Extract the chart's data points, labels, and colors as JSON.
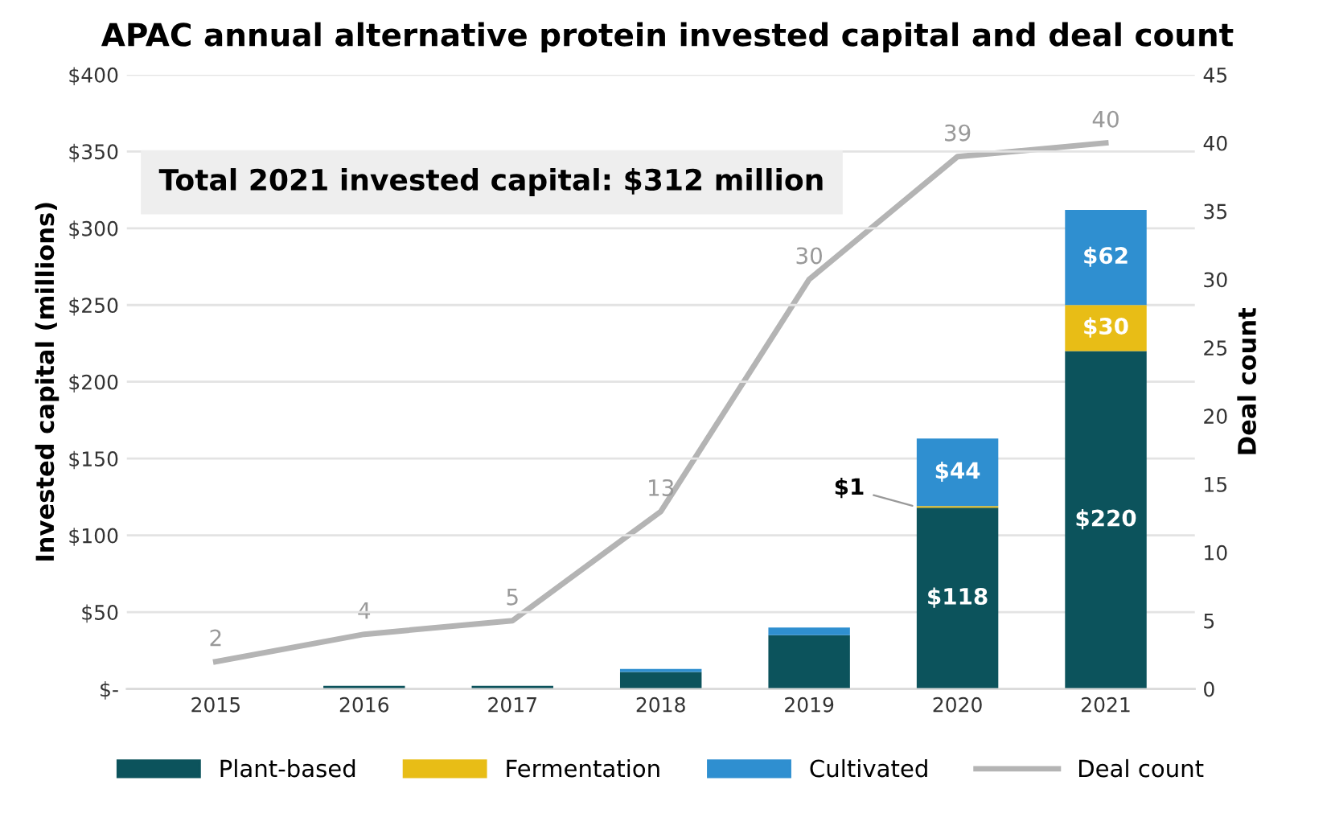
{
  "chart_data": {
    "type": "bar",
    "title": "APAC annual alternative protein invested capital and deal count",
    "ylabel": "Invested capital (millions)",
    "y2label": "Deal count",
    "categories": [
      "2015",
      "2016",
      "2017",
      "2018",
      "2019",
      "2020",
      "2021"
    ],
    "stacked": true,
    "series": [
      {
        "name": "Plant-based",
        "color": "#0c535c",
        "values": [
          0,
          2,
          2,
          11,
          35,
          118,
          220
        ],
        "value_labels": [
          null,
          null,
          null,
          null,
          null,
          "$118",
          "$220"
        ]
      },
      {
        "name": "Fermentation",
        "color": "#e8bd16",
        "values": [
          0,
          0,
          0,
          0,
          0,
          1,
          30
        ],
        "value_labels": [
          null,
          null,
          null,
          null,
          null,
          "$1",
          "$30"
        ]
      },
      {
        "name": "Cultivated",
        "color": "#2f8fd0",
        "values": [
          0,
          0,
          0,
          2,
          5,
          44,
          62
        ],
        "value_labels": [
          null,
          null,
          null,
          null,
          null,
          "$44",
          "$62"
        ]
      },
      {
        "name": "Deal count",
        "type": "line",
        "axis": "y2",
        "color": "#b4b4b4",
        "values": [
          2,
          4,
          5,
          13,
          30,
          39,
          40
        ],
        "value_labels": [
          "2",
          "4",
          "5",
          "13",
          "30",
          "39",
          "40"
        ]
      }
    ],
    "ylim": [
      0,
      400
    ],
    "yticks": [
      {
        "value": 0,
        "label": "$-"
      },
      {
        "value": 50,
        "label": "$50"
      },
      {
        "value": 100,
        "label": "$100"
      },
      {
        "value": 150,
        "label": "$150"
      },
      {
        "value": 200,
        "label": "$200"
      },
      {
        "value": 250,
        "label": "$250"
      },
      {
        "value": 300,
        "label": "$300"
      },
      {
        "value": 350,
        "label": "$350"
      },
      {
        "value": 400,
        "label": "$400"
      }
    ],
    "y2lim": [
      0,
      45
    ],
    "y2ticks": [
      0,
      5,
      10,
      15,
      20,
      25,
      30,
      35,
      40,
      45
    ],
    "annotations": [
      "Total 2021 invested capital: $312 million"
    ],
    "grid": "y",
    "legend": "bottom",
    "marker": "none"
  }
}
